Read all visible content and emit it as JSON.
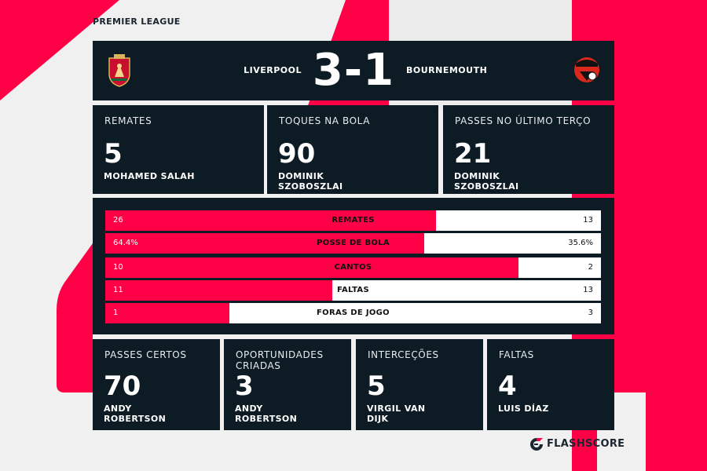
{
  "league": "PREMIER LEAGUE",
  "colors": {
    "accent": "#ff0046",
    "panel": "#0d1c24",
    "background": "#f0f0f0"
  },
  "match": {
    "home_team": "LIVERPOOL",
    "away_team": "BOURNEMOUTH",
    "score": "3-1",
    "home_crest_icon": "liverpool-crest-icon",
    "away_crest_icon": "bournemouth-crest-icon"
  },
  "top_cards": [
    {
      "title": "REMATES",
      "value": "5",
      "player": "MOHAMED SALAH"
    },
    {
      "title": "TOQUES NA BOLA",
      "value": "90",
      "player": "DOMINIK SZOBOSZLAI"
    },
    {
      "title": "PASSES NO ÚLTIMO TERÇO",
      "value": "21",
      "player": "DOMINIK SZOBOSZLAI"
    }
  ],
  "stats": [
    {
      "label": "REMATES",
      "home": "26",
      "away": "13",
      "home_share": 0.667
    },
    {
      "label": "POSSE DE BOLA",
      "home": "64.4%",
      "away": "35.6%",
      "home_share": 0.644
    },
    {
      "label": "CANTOS",
      "home": "10",
      "away": "2",
      "home_share": 0.833
    },
    {
      "label": "FALTAS",
      "home": "11",
      "away": "13",
      "home_share": 0.458
    },
    {
      "label": "FORAS DE JOGO",
      "home": "1",
      "away": "3",
      "home_share": 0.25
    }
  ],
  "bottom_cards": [
    {
      "title": "PASSES CERTOS",
      "value": "70",
      "player": "ANDY ROBERTSON"
    },
    {
      "title": "OPORTUNIDADES CRIADAS",
      "value": "3",
      "player": "ANDY ROBERTSON"
    },
    {
      "title": "INTERCEÇÕES",
      "value": "5",
      "player": "VIRGIL VAN DIJK"
    },
    {
      "title": "FALTAS",
      "value": "4",
      "player": "LUIS DÍAZ"
    }
  ],
  "brand": {
    "name": "FLASHSCORE",
    "icon": "flashscore-logo-icon"
  }
}
